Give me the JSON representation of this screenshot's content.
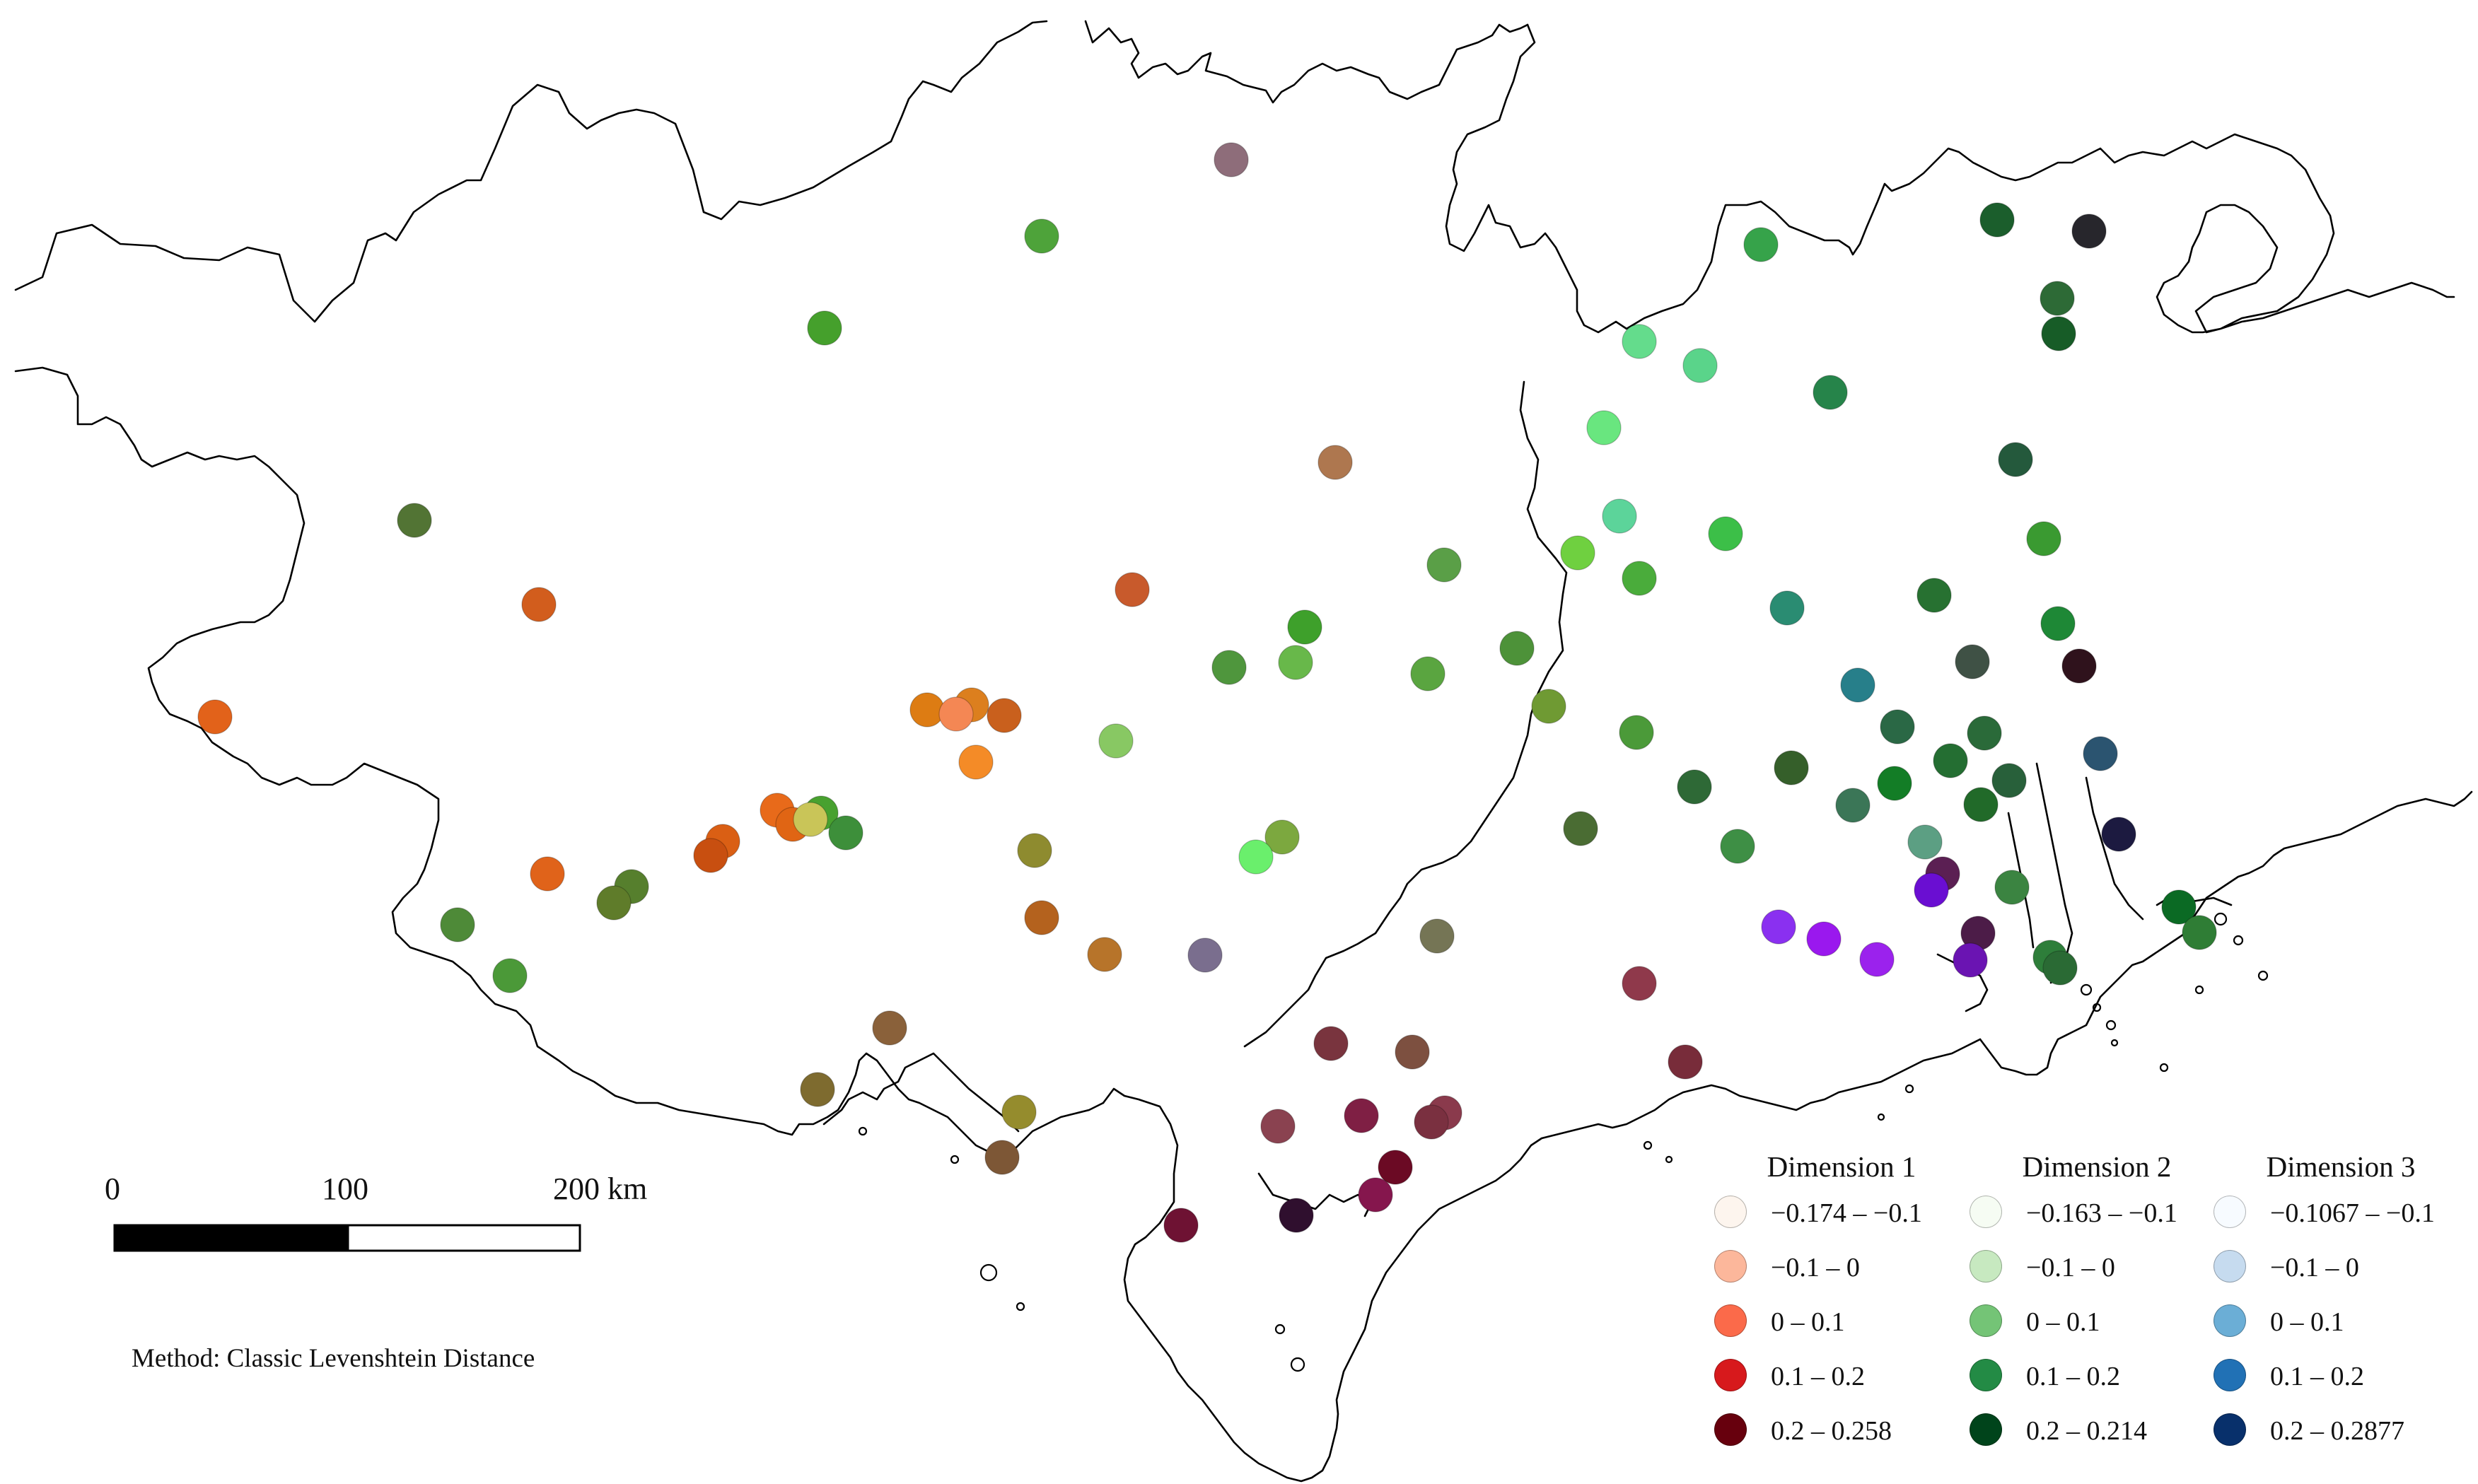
{
  "scale_bar": {
    "tick_labels": [
      "0",
      "100",
      "200 km"
    ]
  },
  "method_label": "Method: Classic Levenshtein Distance",
  "legend": [
    {
      "title": "Dimension 1",
      "items": [
        {
          "label": "−0.174 – −0.1",
          "color": "#fdf5ee"
        },
        {
          "label": "−0.1 – 0",
          "color": "#fcb79b"
        },
        {
          "label": "0 – 0.1",
          "color": "#fb6a4a"
        },
        {
          "label": "0.1 – 0.2",
          "color": "#d7191c"
        },
        {
          "label": "0.2 – 0.258",
          "color": "#67000d"
        }
      ]
    },
    {
      "title": "Dimension 2",
      "items": [
        {
          "label": "−0.163 – −0.1",
          "color": "#f6fcf3"
        },
        {
          "label": "−0.1 – 0",
          "color": "#c7e9c0"
        },
        {
          "label": "0 – 0.1",
          "color": "#74c476"
        },
        {
          "label": "0.1 – 0.2",
          "color": "#238b45"
        },
        {
          "label": "0.2 – 0.214",
          "color": "#00441b"
        }
      ]
    },
    {
      "title": "Dimension 3",
      "items": [
        {
          "label": "−0.1067 – −0.1",
          "color": "#f7fbff"
        },
        {
          "label": "−0.1 – 0",
          "color": "#c6dbef"
        },
        {
          "label": "0 – 0.1",
          "color": "#6baed6"
        },
        {
          "label": "0.1 – 0.2",
          "color": "#2171b5"
        },
        {
          "label": "0.2 – 0.2877",
          "color": "#08306b"
        }
      ]
    }
  ]
}
